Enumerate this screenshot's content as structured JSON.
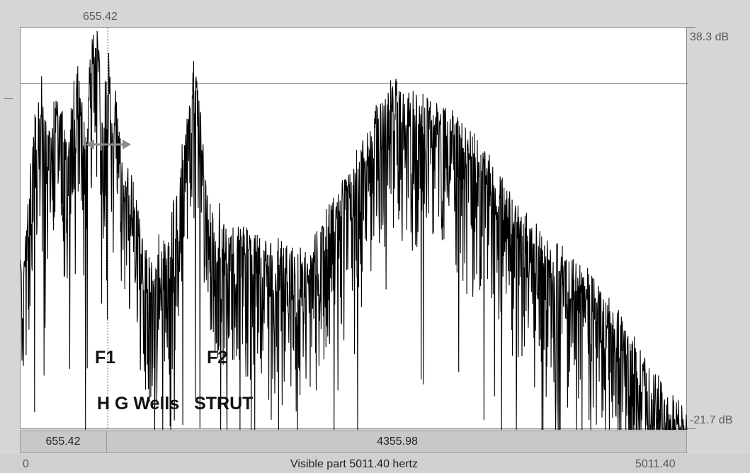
{
  "cursor": {
    "top_label": "655.42",
    "frequency_hz": 655.42
  },
  "axis": {
    "db_max_label": "38.3 dB",
    "db_min_label": "-21.7 dB",
    "hz_min_label": "0",
    "hz_max_label": "5011.40",
    "visible_part_label": "Visible part 5011.40 hertz"
  },
  "selection_bar": {
    "left_value": "655.42",
    "right_value": "4355.98"
  },
  "annotations": {
    "f1": "F1",
    "f2": "F2",
    "caption": "H G Wells   STRUT"
  },
  "chart_data": {
    "type": "line",
    "title": "",
    "xlabel": "Visible part 5011.40 hertz",
    "ylabel": "",
    "xlim": [
      0,
      5011.4
    ],
    "ylim": [
      -21.7,
      38.3
    ],
    "y_unit": "dB",
    "grid": false,
    "horizontal_reference_db": 30.0,
    "cursor_x_hz": 655.42,
    "series": [
      {
        "envelope_x": [
          0,
          60,
          120,
          160,
          200,
          250,
          300,
          350,
          420,
          480,
          520,
          580,
          620,
          655,
          690,
          720,
          760,
          800,
          850,
          900,
          950,
          1000,
          1050,
          1100,
          1150,
          1200,
          1250,
          1300,
          1350,
          1400,
          1450,
          1500,
          1550,
          1600,
          1700,
          1800,
          1900,
          2000,
          2100,
          2200,
          2300,
          2400,
          2500,
          2600,
          2700,
          2800,
          2900,
          3000,
          3100,
          3200,
          3300,
          3400,
          3500,
          3600,
          3700,
          3800,
          3900,
          4000,
          4100,
          4200,
          4300,
          4400,
          4500,
          4600,
          4700,
          4800,
          4900,
          5011.4
        ],
        "envelope_y": [
          2,
          12,
          27,
          31,
          22,
          27,
          26,
          20,
          35,
          24,
          34,
          38,
          23,
          37.5,
          25,
          28,
          18,
          16,
          14,
          8,
          4,
          3,
          7,
          4,
          12,
          18,
          24,
          32,
          26,
          14,
          8,
          11,
          6,
          8,
          7,
          6,
          5,
          5,
          4,
          6,
          10,
          14,
          18,
          22,
          27,
          29,
          28,
          27,
          27,
          25,
          23,
          21,
          18,
          15,
          11,
          9,
          7,
          5,
          4,
          2,
          0,
          -3,
          -6,
          -9,
          -12,
          -15,
          -18,
          -21
        ]
      }
    ]
  }
}
